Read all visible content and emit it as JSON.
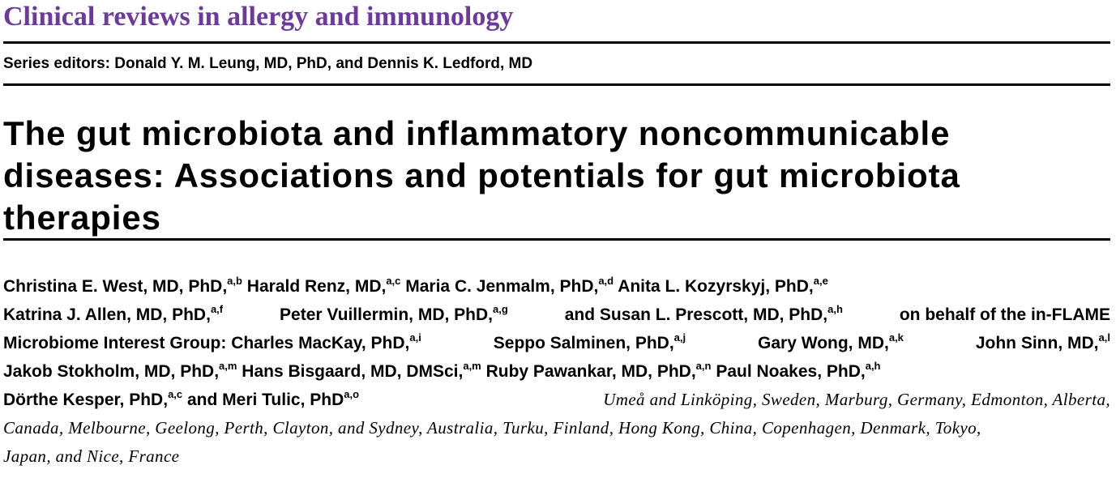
{
  "journal": {
    "series_title": "Clinical reviews in allergy and immunology",
    "series_editors": "Series editors: Donald Y. M. Leung, MD, PhD, and Dennis K. Ledford, MD"
  },
  "article": {
    "title_lines": [
      "The gut microbiota and inflammatory noncommunicable",
      "diseases: Associations and potentials for gut microbiota",
      "therapies"
    ],
    "authors": [
      {
        "name": "Christina E. West, MD, PhD,",
        "aff": "a,b"
      },
      {
        "name": "Harald Renz, MD,",
        "aff": "a,c"
      },
      {
        "name": "Maria C. Jenmalm, PhD,",
        "aff": "a,d"
      },
      {
        "name": "Anita L. Kozyrskyj, PhD,",
        "aff": "a,e"
      },
      {
        "name": "Katrina J. Allen, MD, PhD,",
        "aff": "a,f"
      },
      {
        "name": "Peter Vuillermin, MD, PhD,",
        "aff": "a,g"
      },
      {
        "name": "and Susan L. Prescott, MD, PhD,",
        "aff": "a,h"
      },
      {
        "name": "on behalf of the in-FLAME",
        "aff": ""
      },
      {
        "name": "Microbiome Interest Group: Charles MacKay, PhD,",
        "aff": "a,i"
      },
      {
        "name": "Seppo Salminen, PhD,",
        "aff": "a,j"
      },
      {
        "name": "Gary Wong, MD,",
        "aff": "a,k"
      },
      {
        "name": "John Sinn, MD,",
        "aff": "a,l"
      },
      {
        "name": "Jakob Stokholm, MD, PhD,",
        "aff": "a,m"
      },
      {
        "name": "Hans Bisgaard, MD, DMSci,",
        "aff": "a,m"
      },
      {
        "name": "Ruby Pawankar, MD, PhD,",
        "aff": "a,n"
      },
      {
        "name": "Paul Noakes, PhD,",
        "aff": "a,h"
      },
      {
        "name": "Dörthe Kesper, PhD,",
        "aff": "a,c"
      },
      {
        "name": "and Meri Tulic, PhD",
        "aff": "a,o"
      }
    ],
    "locations": {
      "line1": "Umeå and Linköping, Sweden, Marburg, Germany, Edmonton, Alberta,",
      "line2": "Canada, Melbourne, Geelong, Perth, Clayton, and Sydney, Australia, Turku, Finland, Hong Kong, China, Copenhagen, Denmark, Tokyo,",
      "line3": "Japan, and Nice, France"
    }
  }
}
